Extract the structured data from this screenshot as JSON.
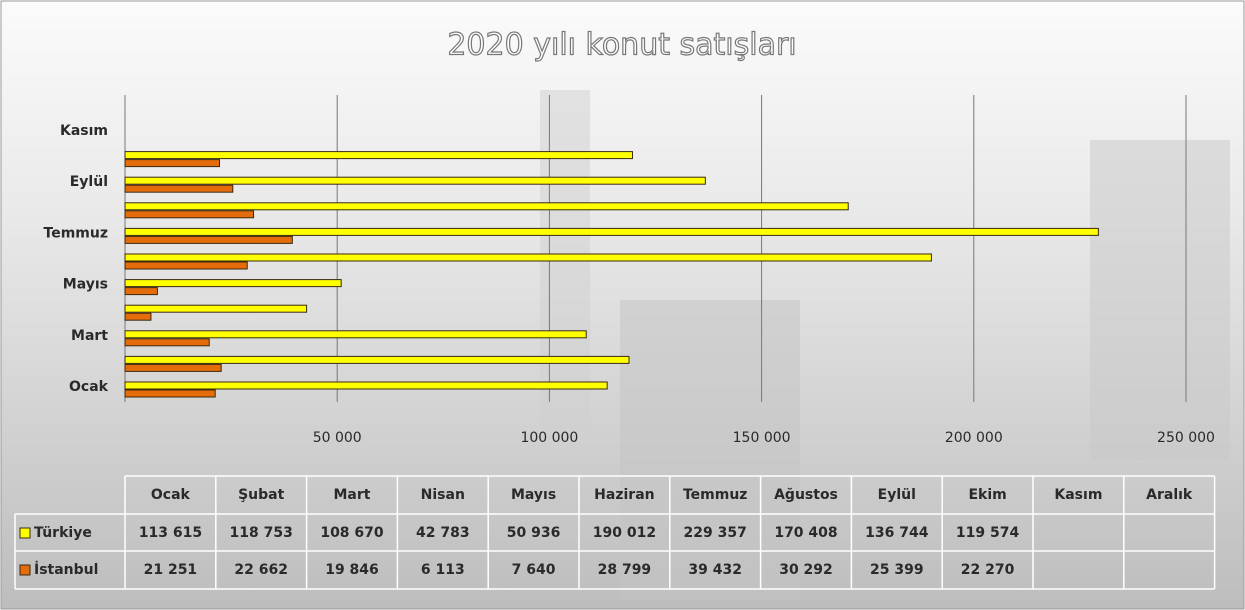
{
  "chart_data": {
    "type": "bar",
    "orientation": "horizontal",
    "title": "2020 yılı konut satışları",
    "categories": [
      "Ocak",
      "Şubat",
      "Mart",
      "Nisan",
      "Mayıs",
      "Haziran",
      "Temmuz",
      "Ağustos",
      "Eylül",
      "Ekim",
      "Kasım",
      "Aralık"
    ],
    "series": [
      {
        "name": "Türkiye",
        "color": "#ffff00",
        "values": [
          113615,
          118753,
          108670,
          42783,
          50936,
          190012,
          229357,
          170408,
          136744,
          119574,
          null,
          null
        ],
        "value_labels": [
          "113 615",
          "118 753",
          "108 670",
          "42 783",
          "50 936",
          "190 012",
          "229 357",
          "170 408",
          "136 744",
          "119 574",
          null,
          null
        ]
      },
      {
        "name": "İstanbul",
        "color": "#e46c0a",
        "values": [
          21251,
          22662,
          19846,
          6113,
          7640,
          28799,
          39432,
          30292,
          25399,
          22270,
          null,
          null
        ],
        "value_labels": [
          "21 251",
          "22 662",
          "19 846",
          "6 113",
          "7 640",
          "28 799",
          "39 432",
          "30 292",
          "25 399",
          "22 270",
          null,
          null
        ]
      }
    ],
    "xlim": [
      0,
      250000
    ],
    "xticks": [
      {
        "value": 50000,
        "label": "50 000"
      },
      {
        "value": 100000,
        "label": "100 000"
      },
      {
        "value": 150000,
        "label": "150 000"
      },
      {
        "value": 200000,
        "label": "200 000"
      },
      {
        "value": 250000,
        "label": "250 000"
      }
    ],
    "grid": true,
    "data_table": true
  }
}
